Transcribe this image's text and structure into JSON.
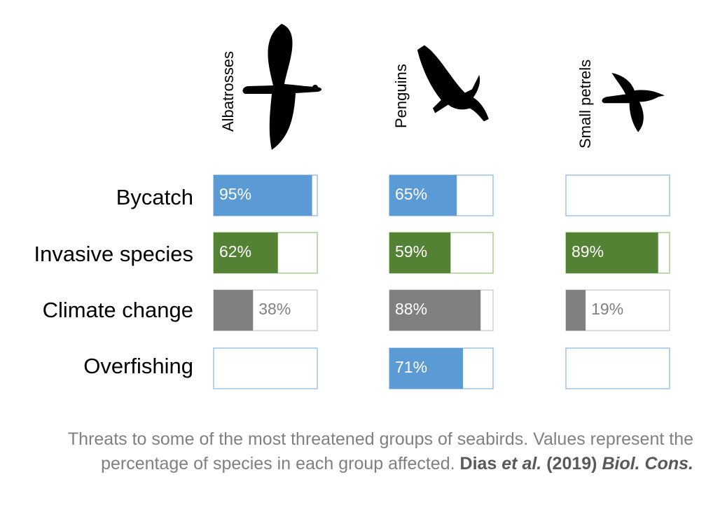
{
  "chart_data": {
    "type": "bar",
    "groups": [
      {
        "name": "Albatrosses",
        "icon": "albatross-silhouette-icon"
      },
      {
        "name": "Penguins",
        "icon": "penguin-silhouette-icon"
      },
      {
        "name": "Small petrels",
        "icon": "petrel-silhouette-icon"
      }
    ],
    "threats": [
      {
        "name": "Bycatch",
        "color": "#5b9bd5",
        "values": [
          95,
          65,
          null
        ]
      },
      {
        "name": "Invasive species",
        "color": "#548235",
        "values": [
          62,
          59,
          89
        ]
      },
      {
        "name": "Climate change",
        "color": "#808080",
        "values": [
          38,
          88,
          19
        ]
      },
      {
        "name": "Overfishing",
        "color": "#5b9bd5",
        "values": [
          null,
          71,
          null
        ]
      }
    ],
    "value_suffix": "%",
    "xlim": [
      0,
      100
    ]
  },
  "caption": {
    "text": "Threats to some of the most threatened groups of seabirds. Values represent the percentage of species in each group affected.",
    "citation_authors": "Dias",
    "citation_etal": "et al.",
    "citation_year": "(2019)",
    "citation_journal": "Biol. Cons."
  }
}
